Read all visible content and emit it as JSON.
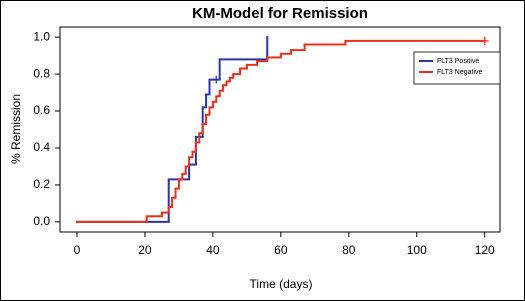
{
  "chart_data": {
    "type": "step",
    "title": "KM-Model for Remission",
    "x_label": "Time (days)",
    "y_label": "% Remission",
    "xlim": [
      -5,
      124.5
    ],
    "ylim": [
      -0.055,
      1.055
    ],
    "xticks": [
      0,
      20,
      40,
      60,
      80,
      100,
      120
    ],
    "yticks": [
      {
        "value": 0,
        "label": "0.0"
      },
      {
        "value": 0.2,
        "label": "0.2"
      },
      {
        "value": 0.4,
        "label": "0.4"
      },
      {
        "value": 0.6,
        "label": "0.6"
      },
      {
        "value": 0.8,
        "label": "0.8"
      },
      {
        "value": 1,
        "label": "1.0"
      }
    ],
    "legend": "top-right",
    "series": [
      {
        "name": "FLT3 Positive",
        "color": "#2a36a8",
        "x": [
          0,
          27,
          33,
          35,
          37,
          38,
          39,
          42,
          56
        ],
        "values": [
          0,
          0.23,
          0.31,
          0.46,
          0.62,
          0.69,
          0.77,
          0.88,
          1.0
        ],
        "censor_x": [
          41
        ],
        "censor_values": [
          0.77
        ]
      },
      {
        "name": "FLT3 Negative",
        "color": "#e8301c",
        "x": [
          0,
          20.5,
          25,
          27,
          28,
          29,
          30,
          31,
          32,
          33,
          34,
          35,
          36,
          37,
          38,
          39,
          40,
          41,
          42,
          43,
          44,
          45,
          46,
          48,
          50,
          53,
          56,
          60,
          63,
          67,
          79,
          120
        ],
        "values": [
          0,
          0.03,
          0.05,
          0.08,
          0.13,
          0.18,
          0.23,
          0.26,
          0.3,
          0.35,
          0.38,
          0.43,
          0.48,
          0.53,
          0.58,
          0.62,
          0.65,
          0.68,
          0.71,
          0.74,
          0.76,
          0.78,
          0.8,
          0.83,
          0.85,
          0.87,
          0.89,
          0.91,
          0.93,
          0.96,
          0.98,
          0.98
        ],
        "censor_x": [
          120
        ],
        "censor_values": [
          0.98
        ]
      }
    ]
  }
}
